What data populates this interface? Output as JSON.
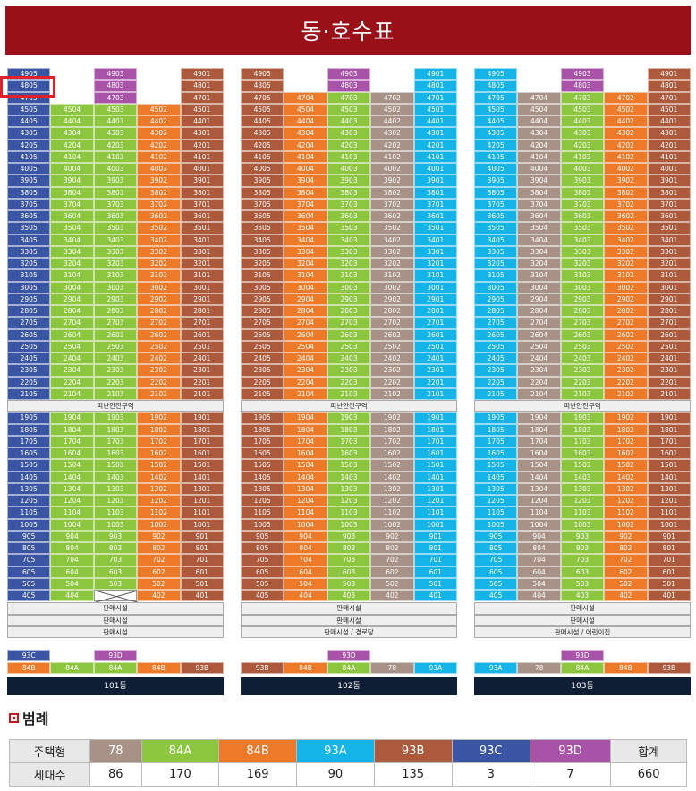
{
  "title": "동·호수표",
  "colors": {
    "78": "#a89288",
    "84A": "#8cc63f",
    "84B": "#ec7a29",
    "93A": "#14b4e8",
    "93B": "#ad5a3c",
    "93C": "#3b55a5",
    "93D": "#a853a8"
  },
  "refuge_label": "피난안전구역",
  "buildings": [
    {
      "name": "101동",
      "columns": [
        "93C",
        "84A",
        "84A",
        "84B",
        "93B"
      ],
      "top_floors": [
        {
          "floor": 49,
          "types": [
            "93C",
            null,
            "93D",
            null,
            "93B"
          ]
        },
        {
          "floor": 48,
          "types": [
            "93C",
            null,
            "93D",
            null,
            "93B"
          ]
        },
        {
          "floor": 47,
          "types": [
            "93C",
            null,
            "93D",
            null,
            "93B"
          ]
        }
      ],
      "crossed": [
        "403"
      ],
      "mid_floors_above": 45,
      "mid_floors_from": 21,
      "low_floors_top": 19,
      "low_floors_bottom": 4,
      "retail_bars": [
        "판매시설",
        "판매시설",
        "판매시설"
      ],
      "bottom_types": [
        [
          "93C"
        ],
        [
          "84B",
          "84A",
          "84A",
          "84B",
          "93B"
        ]
      ],
      "bottom_extra": [
        {
          "label": "93D",
          "col": 2
        }
      ]
    },
    {
      "name": "102동",
      "columns": [
        "93B",
        "84B",
        "84A",
        "78",
        "93A"
      ],
      "top_floors": [
        {
          "floor": 49,
          "types": [
            "93B",
            null,
            "93D",
            null,
            "93A"
          ]
        },
        {
          "floor": 48,
          "types": [
            "93B",
            null,
            "93D",
            null,
            "93A"
          ]
        },
        {
          "floor": 47,
          "types": [
            "93B",
            "84B",
            "84A",
            "78",
            "93A"
          ]
        }
      ],
      "crossed": [],
      "mid_floors_above": 45,
      "mid_floors_from": 21,
      "low_floors_top": 19,
      "low_floors_bottom": 4,
      "retail_bars": [
        "판매시설",
        "판매시설",
        "판매시설 / 경로당"
      ],
      "bottom_types": [
        [],
        [
          "93B",
          "84B",
          "84A",
          "78",
          "93A"
        ]
      ],
      "bottom_extra": [
        {
          "label": "93D",
          "col": 2
        }
      ]
    },
    {
      "name": "103동",
      "columns": [
        "93A",
        "78",
        "84A",
        "84B",
        "93B"
      ],
      "top_floors": [
        {
          "floor": 49,
          "types": [
            "93A",
            null,
            "93D",
            null,
            "93B"
          ]
        },
        {
          "floor": 48,
          "types": [
            "93A",
            null,
            "93D",
            null,
            "93B"
          ]
        },
        {
          "floor": 47,
          "types": [
            "93A",
            "78",
            "84A",
            "84B",
            "93B"
          ]
        }
      ],
      "crossed": [],
      "mid_floors_above": 45,
      "mid_floors_from": 21,
      "low_floors_top": 19,
      "low_floors_bottom": 4,
      "retail_bars": [
        "판매시설",
        "판매시설",
        "판매시설 / 어린이집"
      ],
      "bottom_types": [
        [],
        [
          "93A",
          "78",
          "84A",
          "84B",
          "93B"
        ]
      ],
      "bottom_extra": [
        {
          "label": "93D",
          "col": 2
        }
      ]
    }
  ],
  "legend": {
    "title": "범례",
    "row1_label": "주택형",
    "row2_label": "세대수",
    "types": [
      "78",
      "84A",
      "84B",
      "93A",
      "93B",
      "93C",
      "93D"
    ],
    "counts": [
      "86",
      "170",
      "169",
      "90",
      "135",
      "3",
      "7"
    ],
    "total_label": "합계",
    "total_count": "660"
  }
}
